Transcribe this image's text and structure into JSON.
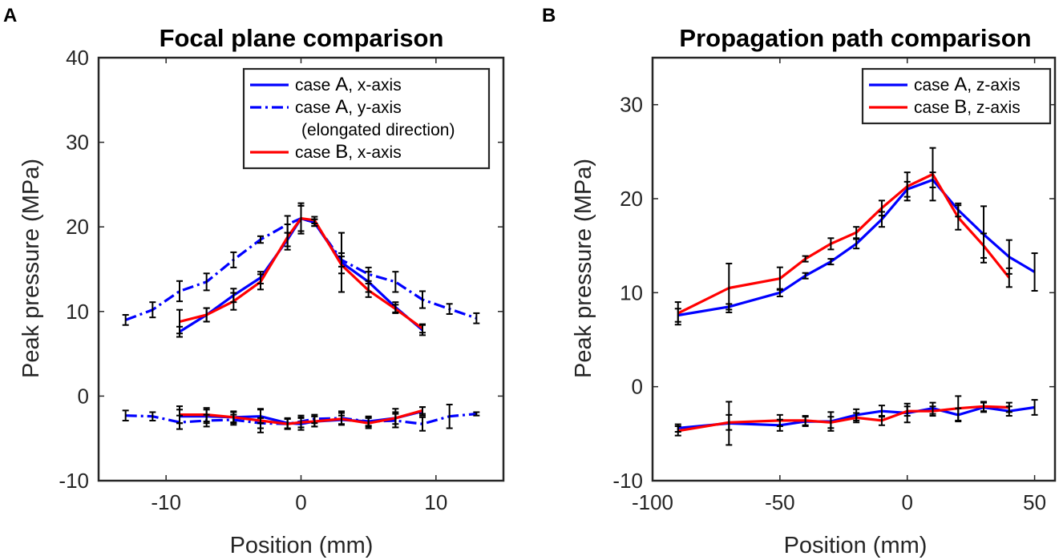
{
  "panels": [
    {
      "letter": "A",
      "title": "Focal plane comparison",
      "xlabel": "Position (mm)",
      "ylabel": "Peak pressure (MPa)",
      "xlim": [
        -15,
        15
      ],
      "ylim": [
        -10,
        40
      ],
      "xticks": [
        -10,
        0,
        10
      ],
      "yticks": [
        -10,
        0,
        10,
        20,
        30,
        40
      ],
      "xtick_labels": [
        "-10",
        "0",
        "10"
      ],
      "ytick_labels": [
        "-10",
        "0",
        "10",
        "20",
        "30",
        "40"
      ],
      "legend": [
        {
          "name": "case A, x-axis",
          "a": "case ",
          "b": "A",
          "c": ", x-axis",
          "color": "#0000ff",
          "style": "solid"
        },
        {
          "name": "case A, y-axis",
          "a": "case ",
          "b": "A",
          "c": ", y-axis",
          "extra": "(elongated direction)",
          "color": "#0000ff",
          "style": "dashdot"
        },
        {
          "name": "case B, x-axis",
          "a": "case ",
          "b": "B",
          "c": ", x-axis",
          "color": "#ff0000",
          "style": "solid"
        }
      ],
      "series": [
        {
          "name": "caseA-x-positive",
          "color": "#0000ff",
          "style": "solid",
          "x": [
            -9,
            -7,
            -5,
            -3,
            -1,
            0,
            1,
            3,
            5,
            7,
            9
          ],
          "y": [
            7.6,
            9.6,
            11.9,
            14.0,
            18.5,
            21.0,
            20.5,
            15.8,
            13.5,
            10.5,
            7.8
          ],
          "err": [
            0.6,
            0.8,
            0.8,
            0.7,
            0.8,
            1.5,
            0.4,
            3.5,
            1.2,
            0.6,
            0.6
          ]
        },
        {
          "name": "caseA-y-positive",
          "color": "#0000ff",
          "style": "dashdot",
          "x": [
            -13,
            -11,
            -9,
            -7,
            -5,
            -3,
            -1,
            0,
            1,
            3,
            5,
            7,
            9,
            11,
            13
          ],
          "y": [
            9.0,
            10.2,
            12.4,
            13.5,
            16.1,
            18.5,
            20.3,
            21.0,
            20.5,
            16.1,
            14.4,
            13.5,
            11.4,
            10.3,
            9.2
          ],
          "err": [
            0.6,
            0.9,
            1.2,
            1.0,
            0.9,
            0.4,
            1.0,
            1.8,
            0.4,
            0.8,
            0.8,
            1.2,
            1.0,
            0.6,
            0.6
          ]
        },
        {
          "name": "caseB-x-positive",
          "color": "#ff0000",
          "style": "solid",
          "x": [
            -9,
            -7,
            -5,
            -3,
            -1,
            0,
            1,
            3,
            5,
            7,
            9
          ],
          "y": [
            8.8,
            9.6,
            11.2,
            13.5,
            18.8,
            21.0,
            20.8,
            15.5,
            12.5,
            10.3,
            8.0
          ],
          "err": [
            1.4,
            0.8,
            1.0,
            0.9,
            1.5,
            1.5,
            0.4,
            1.0,
            0.8,
            0.5,
            0.5
          ]
        },
        {
          "name": "caseA-x-negative",
          "color": "#0000ff",
          "style": "solid",
          "x": [
            -9,
            -7,
            -5,
            -3,
            -1,
            0,
            1,
            3,
            5,
            7,
            9
          ],
          "y": [
            -2.4,
            -2.4,
            -2.5,
            -2.4,
            -3.2,
            -3.3,
            -3.0,
            -2.8,
            -3.0,
            -2.6,
            -1.8
          ],
          "err": [
            0.8,
            0.8,
            0.6,
            0.8,
            0.6,
            0.7,
            0.6,
            0.5,
            0.5,
            0.7,
            0.5
          ]
        },
        {
          "name": "caseA-y-negative",
          "color": "#0000ff",
          "style": "dashdot",
          "x": [
            -13,
            -11,
            -9,
            -7,
            -5,
            -3,
            -1,
            0,
            1,
            3,
            5,
            7,
            9,
            11,
            13
          ],
          "y": [
            -2.3,
            -2.4,
            -3.1,
            -2.9,
            -2.8,
            -3.2,
            -3.3,
            -3.0,
            -2.7,
            -2.6,
            -3.0,
            -2.9,
            -3.3,
            -2.4,
            -2.1
          ],
          "err": [
            0.6,
            0.5,
            0.8,
            0.7,
            0.6,
            0.6,
            0.6,
            0.7,
            0.5,
            0.8,
            0.6,
            0.8,
            0.8,
            1.4,
            0.2
          ]
        },
        {
          "name": "caseB-x-negative",
          "color": "#ff0000",
          "style": "solid",
          "x": [
            -9,
            -7,
            -5,
            -3,
            -1,
            0,
            1,
            3,
            5,
            7,
            9
          ],
          "y": [
            -2.2,
            -2.2,
            -2.5,
            -2.9,
            -3.3,
            -3.1,
            -3.0,
            -2.7,
            -3.2,
            -2.6,
            -1.7
          ],
          "err": [
            1.0,
            0.8,
            0.7,
            1.4,
            0.6,
            0.6,
            0.6,
            0.7,
            0.6,
            1.1,
            0.4
          ]
        }
      ]
    },
    {
      "letter": "B",
      "title": "Propagation path comparison",
      "xlabel": "Position (mm)",
      "ylabel": "Peak pressure (MPa)",
      "xlim": [
        -100,
        58
      ],
      "ylim": [
        -10,
        35
      ],
      "xticks": [
        -100,
        -50,
        0,
        50
      ],
      "yticks": [
        -10,
        0,
        10,
        20,
        30
      ],
      "xtick_labels": [
        "-100",
        "-50",
        "0",
        "50"
      ],
      "ytick_labels": [
        "-10",
        "0",
        "10",
        "20",
        "30"
      ],
      "legend": [
        {
          "name": "case A, z-axis",
          "a": "case ",
          "b": "A",
          "c": ", z-axis",
          "color": "#0000ff",
          "style": "solid"
        },
        {
          "name": "case B, z-axis",
          "a": "case ",
          "b": "B",
          "c": ", z-axis",
          "color": "#ff0000",
          "style": "solid"
        }
      ],
      "series": [
        {
          "name": "caseA-z-positive",
          "color": "#0000ff",
          "style": "solid",
          "x": [
            -90,
            -70,
            -50,
            -40,
            -30,
            -20,
            -10,
            0,
            10,
            20,
            30,
            40,
            50
          ],
          "y": [
            7.6,
            8.5,
            10.0,
            11.8,
            13.3,
            15.2,
            17.8,
            21.0,
            22.0,
            18.8,
            16.2,
            13.8,
            12.2
          ],
          "err": [
            0.7,
            0.3,
            0.4,
            0.3,
            0.3,
            0.5,
            0.8,
            0.8,
            0.8,
            0.7,
            3.0,
            1.8,
            2.0
          ]
        },
        {
          "name": "caseB-z-positive",
          "color": "#ff0000",
          "style": "solid",
          "x": [
            -90,
            -70,
            -50,
            -40,
            -30,
            -20,
            -10,
            0,
            10,
            20,
            30,
            40
          ],
          "y": [
            7.8,
            10.5,
            11.5,
            13.6,
            15.2,
            16.4,
            19.0,
            21.3,
            22.6,
            18.0,
            15.0,
            11.6
          ],
          "err": [
            1.2,
            2.6,
            1.2,
            0.3,
            0.6,
            0.6,
            0.8,
            1.5,
            2.8,
            1.3,
            1.3,
            1.0
          ]
        },
        {
          "name": "caseA-z-negative",
          "color": "#0000ff",
          "style": "solid",
          "x": [
            -90,
            -70,
            -50,
            -40,
            -30,
            -20,
            -10,
            0,
            10,
            20,
            30,
            40,
            50
          ],
          "y": [
            -4.4,
            -3.9,
            -4.1,
            -3.7,
            -3.7,
            -3.0,
            -2.6,
            -2.8,
            -2.3,
            -3.0,
            -2.2,
            -2.6,
            -2.2
          ],
          "err": [
            0.4,
            2.3,
            0.6,
            0.5,
            1.0,
            0.6,
            0.6,
            1.0,
            0.6,
            0.7,
            0.5,
            0.5,
            0.8
          ]
        },
        {
          "name": "caseB-z-negative",
          "color": "#ff0000",
          "style": "solid",
          "x": [
            -90,
            -70,
            -50,
            -40,
            -30,
            -20,
            -10,
            0,
            10,
            20,
            30,
            40
          ],
          "y": [
            -4.7,
            -3.8,
            -3.6,
            -3.6,
            -3.8,
            -3.3,
            -3.6,
            -2.6,
            -2.6,
            -2.3,
            -2.1,
            -2.2
          ],
          "err": [
            0.5,
            0.8,
            0.6,
            0.5,
            0.6,
            0.5,
            0.5,
            0.5,
            0.5,
            1.3,
            0.5,
            0.5
          ]
        }
      ]
    }
  ]
}
